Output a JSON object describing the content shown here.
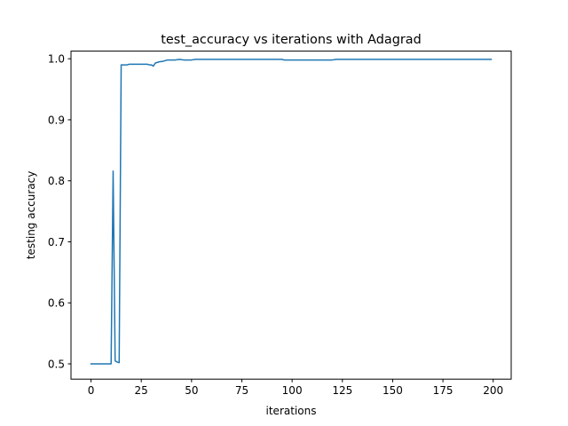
{
  "chart_data": {
    "type": "line",
    "title": "test_accuracy vs iterations with Adagrad",
    "xlabel": "iterations",
    "ylabel": "testing accuracy",
    "xlim": [
      -9.95,
      208.95
    ],
    "ylim": [
      0.475,
      1.0125
    ],
    "xticks": [
      0,
      25,
      50,
      75,
      100,
      125,
      150,
      175,
      200
    ],
    "yticks": [
      0.5,
      0.6,
      0.7,
      0.8,
      0.9,
      1.0
    ],
    "ytick_labels": [
      "0.5",
      "0.6",
      "0.7",
      "0.8",
      "0.9",
      "1.0"
    ],
    "grid": false,
    "series": [
      {
        "color": "#1f77b4",
        "x": [
          0,
          1,
          2,
          3,
          4,
          5,
          6,
          7,
          8,
          9,
          10,
          11,
          12,
          13,
          14,
          15,
          16,
          17,
          18,
          19,
          20,
          22,
          25,
          28,
          29,
          30,
          31,
          32,
          34,
          36,
          38,
          40,
          42,
          44,
          46,
          48,
          50,
          52,
          55,
          60,
          70,
          80,
          90,
          95,
          96,
          100,
          110,
          120,
          122,
          130,
          140,
          150,
          160,
          170,
          180,
          190,
          199
        ],
        "y": [
          0.5,
          0.5,
          0.5,
          0.5,
          0.5,
          0.5,
          0.5,
          0.5,
          0.5,
          0.5,
          0.5,
          0.816,
          0.505,
          0.503,
          0.502,
          0.99,
          0.99,
          0.99,
          0.99,
          0.991,
          0.991,
          0.991,
          0.991,
          0.991,
          0.99,
          0.99,
          0.988,
          0.993,
          0.995,
          0.996,
          0.998,
          0.998,
          0.998,
          0.999,
          0.998,
          0.998,
          0.998,
          0.999,
          0.999,
          0.999,
          0.999,
          0.999,
          0.999,
          0.999,
          0.998,
          0.998,
          0.998,
          0.998,
          0.999,
          0.999,
          0.999,
          0.999,
          0.999,
          0.999,
          0.999,
          0.999,
          0.999
        ]
      }
    ]
  }
}
